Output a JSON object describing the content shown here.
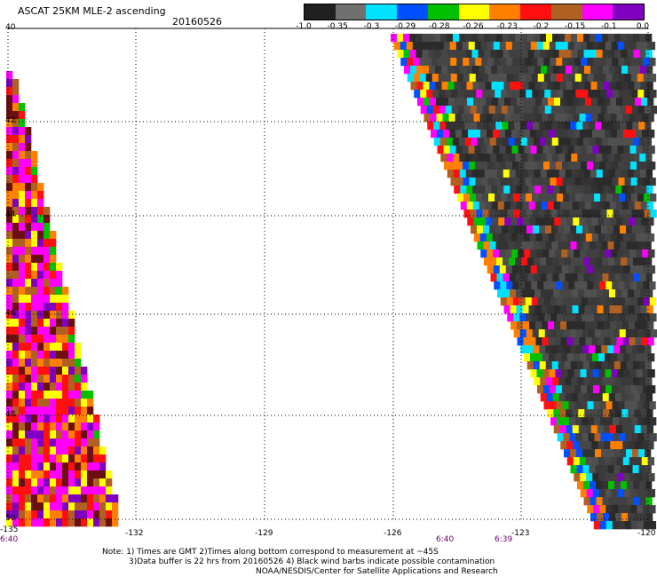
{
  "header": {
    "title": "ASCAT 25KM MLE-2 ascending",
    "date": "20160526"
  },
  "colorbar": {
    "labels": [
      "-1.0",
      "-0.35",
      "-0.3",
      "-0.29",
      "-0.28",
      "-0.26",
      "-0.23",
      "-0.2",
      "-0.15",
      "-0.1",
      "0.0"
    ],
    "colors": [
      "#202020",
      "#707070",
      "#00e0ff",
      "#0050ff",
      "#00c000",
      "#ffff00",
      "#ff8000",
      "#ff1010",
      "#b06020",
      "#ff00ff",
      "#8000c0"
    ]
  },
  "axes": {
    "y_labels": [
      "40",
      "42",
      "44",
      "46",
      "48",
      "50"
    ],
    "x_labels": [
      "-135",
      "-132",
      "-129",
      "-126",
      "-123",
      "-120"
    ]
  },
  "swath_times": [
    "6:40",
    "6:40",
    "6:39"
  ],
  "notes": [
    "Note: 1) Times are GMT 2)Times along bottom correspond to measurement at ~45S",
    "3)Data buffer is 22 hrs from 20160526 4) Black wind barbs indicate possible contamination",
    "NOAA/NESDIS/Center for Satellite Applications and Research"
  ]
}
